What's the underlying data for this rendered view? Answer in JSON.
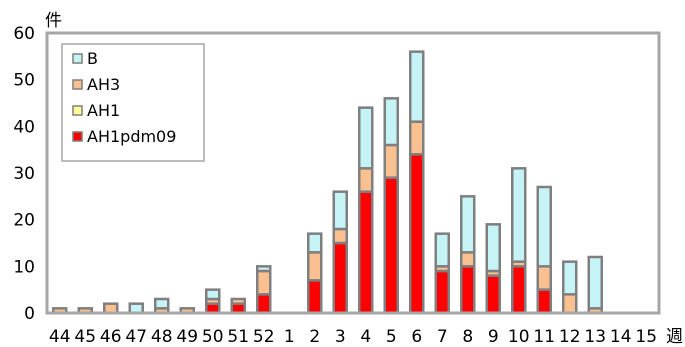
{
  "chart_data": {
    "type": "bar",
    "stacked": true,
    "y_unit_label": "件",
    "x_unit_label": "週",
    "ylim": [
      0,
      60
    ],
    "yticks": [
      0,
      10,
      20,
      30,
      40,
      50,
      60
    ],
    "grid": false,
    "legend_placement": "top-left",
    "categories": [
      "44",
      "45",
      "46",
      "47",
      "48",
      "49",
      "50",
      "51",
      "52",
      "1",
      "2",
      "3",
      "4",
      "5",
      "6",
      "7",
      "8",
      "9",
      "10",
      "11",
      "12",
      "13",
      "14",
      "15"
    ],
    "series": [
      {
        "name": "AH1pdm09",
        "color": "#ff0000",
        "values": [
          0,
          0,
          0,
          0,
          0,
          0,
          2,
          2,
          4,
          0,
          7,
          15,
          26,
          29,
          34,
          9,
          10,
          8,
          10,
          5,
          0,
          0,
          0,
          0
        ]
      },
      {
        "name": "AH1",
        "color": "#ffff99",
        "values": [
          0,
          0,
          0,
          0,
          0,
          0,
          0,
          0,
          0,
          0,
          0,
          0,
          0,
          0,
          0,
          0,
          0,
          0,
          0,
          0,
          0,
          0,
          0,
          0
        ]
      },
      {
        "name": "AH3",
        "color": "#fac090",
        "values": [
          1,
          1,
          2,
          0,
          1,
          1,
          1,
          1,
          5,
          0,
          6,
          3,
          5,
          7,
          7,
          1,
          3,
          1,
          1,
          5,
          4,
          1,
          0,
          0
        ]
      },
      {
        "name": "B",
        "color": "#c6f3f6",
        "values": [
          0,
          0,
          0,
          2,
          2,
          0,
          2,
          0,
          1,
          0,
          4,
          8,
          13,
          10,
          15,
          7,
          12,
          10,
          20,
          17,
          7,
          11,
          0,
          0
        ]
      }
    ]
  }
}
